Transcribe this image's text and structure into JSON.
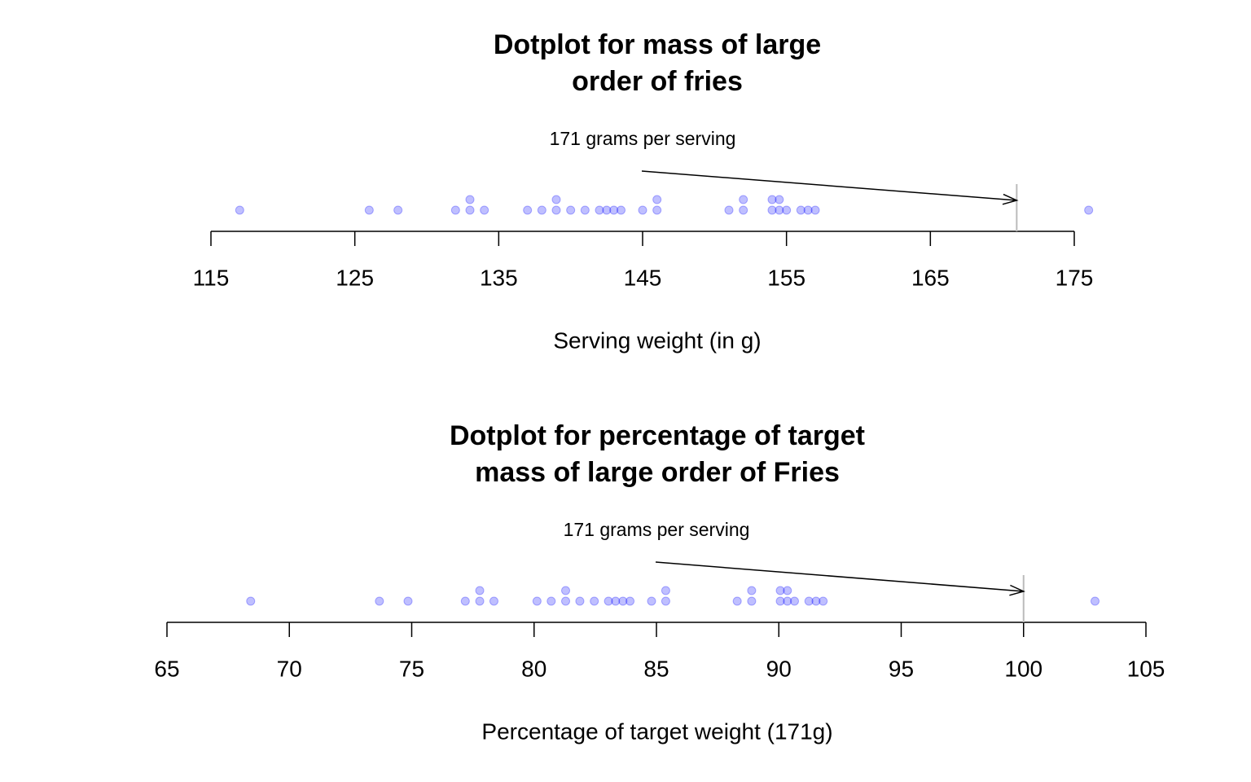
{
  "chart_data": [
    {
      "type": "dotplot",
      "title": [
        "Dotplot for mass of large",
        "order of fries"
      ],
      "xlabel": "Serving weight (in g)",
      "annotation": "171 grams per serving",
      "refline": 171,
      "color": "#0000ff",
      "xlim": [
        115,
        175
      ],
      "xticks": [
        115,
        125,
        135,
        145,
        155,
        165,
        175
      ],
      "values": [
        117,
        126,
        128,
        132,
        133,
        133,
        134,
        137,
        138,
        139,
        139,
        140,
        141,
        142,
        142.5,
        143,
        143.5,
        145,
        146,
        146,
        151,
        152,
        152,
        154,
        154,
        154.5,
        154.5,
        155,
        156,
        156.5,
        157,
        176
      ]
    },
    {
      "type": "dotplot",
      "title": [
        "Dotplot for percentage of target",
        "mass of large order of Fries"
      ],
      "xlabel": "Percentage of target weight (171g)",
      "annotation": "171 grams per serving",
      "refline": 100,
      "color": "#0000ff",
      "xlim": [
        65,
        105
      ],
      "xticks": [
        65,
        70,
        75,
        80,
        85,
        90,
        95,
        100,
        105
      ],
      "values": [
        68.42,
        73.68,
        74.85,
        77.19,
        77.78,
        77.78,
        78.36,
        80.12,
        80.7,
        81.29,
        81.29,
        81.87,
        82.46,
        83.04,
        83.33,
        83.63,
        83.92,
        84.8,
        85.38,
        85.38,
        88.3,
        88.89,
        88.89,
        90.06,
        90.06,
        90.35,
        90.35,
        90.64,
        91.23,
        91.52,
        91.81,
        102.92
      ]
    }
  ]
}
